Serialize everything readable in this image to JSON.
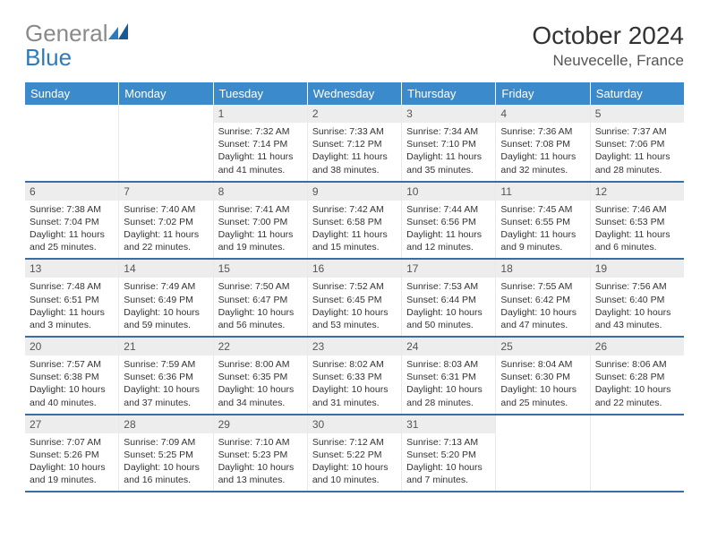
{
  "brand": {
    "word1": "General",
    "word2": "Blue"
  },
  "title": "October 2024",
  "location": "Neuvecelle, France",
  "colors": {
    "header_bg": "#3b8bcc",
    "header_text": "#ffffff",
    "row_divider": "#3b6da3",
    "daynum_bg": "#ededed",
    "daynum_text": "#555555",
    "body_text": "#333333",
    "logo_gray": "#8a8a8a",
    "logo_blue": "#2e7ac0"
  },
  "layout": {
    "columns": 7,
    "rows": 5,
    "cell_min_height": 74
  },
  "dow": [
    "Sunday",
    "Monday",
    "Tuesday",
    "Wednesday",
    "Thursday",
    "Friday",
    "Saturday"
  ],
  "weeks": [
    [
      {
        "empty": true
      },
      {
        "empty": true
      },
      {
        "n": "1",
        "sunrise": "7:32 AM",
        "sunset": "7:14 PM",
        "daylight": "11 hours and 41 minutes."
      },
      {
        "n": "2",
        "sunrise": "7:33 AM",
        "sunset": "7:12 PM",
        "daylight": "11 hours and 38 minutes."
      },
      {
        "n": "3",
        "sunrise": "7:34 AM",
        "sunset": "7:10 PM",
        "daylight": "11 hours and 35 minutes."
      },
      {
        "n": "4",
        "sunrise": "7:36 AM",
        "sunset": "7:08 PM",
        "daylight": "11 hours and 32 minutes."
      },
      {
        "n": "5",
        "sunrise": "7:37 AM",
        "sunset": "7:06 PM",
        "daylight": "11 hours and 28 minutes."
      }
    ],
    [
      {
        "n": "6",
        "sunrise": "7:38 AM",
        "sunset": "7:04 PM",
        "daylight": "11 hours and 25 minutes."
      },
      {
        "n": "7",
        "sunrise": "7:40 AM",
        "sunset": "7:02 PM",
        "daylight": "11 hours and 22 minutes."
      },
      {
        "n": "8",
        "sunrise": "7:41 AM",
        "sunset": "7:00 PM",
        "daylight": "11 hours and 19 minutes."
      },
      {
        "n": "9",
        "sunrise": "7:42 AM",
        "sunset": "6:58 PM",
        "daylight": "11 hours and 15 minutes."
      },
      {
        "n": "10",
        "sunrise": "7:44 AM",
        "sunset": "6:56 PM",
        "daylight": "11 hours and 12 minutes."
      },
      {
        "n": "11",
        "sunrise": "7:45 AM",
        "sunset": "6:55 PM",
        "daylight": "11 hours and 9 minutes."
      },
      {
        "n": "12",
        "sunrise": "7:46 AM",
        "sunset": "6:53 PM",
        "daylight": "11 hours and 6 minutes."
      }
    ],
    [
      {
        "n": "13",
        "sunrise": "7:48 AM",
        "sunset": "6:51 PM",
        "daylight": "11 hours and 3 minutes."
      },
      {
        "n": "14",
        "sunrise": "7:49 AM",
        "sunset": "6:49 PM",
        "daylight": "10 hours and 59 minutes."
      },
      {
        "n": "15",
        "sunrise": "7:50 AM",
        "sunset": "6:47 PM",
        "daylight": "10 hours and 56 minutes."
      },
      {
        "n": "16",
        "sunrise": "7:52 AM",
        "sunset": "6:45 PM",
        "daylight": "10 hours and 53 minutes."
      },
      {
        "n": "17",
        "sunrise": "7:53 AM",
        "sunset": "6:44 PM",
        "daylight": "10 hours and 50 minutes."
      },
      {
        "n": "18",
        "sunrise": "7:55 AM",
        "sunset": "6:42 PM",
        "daylight": "10 hours and 47 minutes."
      },
      {
        "n": "19",
        "sunrise": "7:56 AM",
        "sunset": "6:40 PM",
        "daylight": "10 hours and 43 minutes."
      }
    ],
    [
      {
        "n": "20",
        "sunrise": "7:57 AM",
        "sunset": "6:38 PM",
        "daylight": "10 hours and 40 minutes."
      },
      {
        "n": "21",
        "sunrise": "7:59 AM",
        "sunset": "6:36 PM",
        "daylight": "10 hours and 37 minutes."
      },
      {
        "n": "22",
        "sunrise": "8:00 AM",
        "sunset": "6:35 PM",
        "daylight": "10 hours and 34 minutes."
      },
      {
        "n": "23",
        "sunrise": "8:02 AM",
        "sunset": "6:33 PM",
        "daylight": "10 hours and 31 minutes."
      },
      {
        "n": "24",
        "sunrise": "8:03 AM",
        "sunset": "6:31 PM",
        "daylight": "10 hours and 28 minutes."
      },
      {
        "n": "25",
        "sunrise": "8:04 AM",
        "sunset": "6:30 PM",
        "daylight": "10 hours and 25 minutes."
      },
      {
        "n": "26",
        "sunrise": "8:06 AM",
        "sunset": "6:28 PM",
        "daylight": "10 hours and 22 minutes."
      }
    ],
    [
      {
        "n": "27",
        "sunrise": "7:07 AM",
        "sunset": "5:26 PM",
        "daylight": "10 hours and 19 minutes."
      },
      {
        "n": "28",
        "sunrise": "7:09 AM",
        "sunset": "5:25 PM",
        "daylight": "10 hours and 16 minutes."
      },
      {
        "n": "29",
        "sunrise": "7:10 AM",
        "sunset": "5:23 PM",
        "daylight": "10 hours and 13 minutes."
      },
      {
        "n": "30",
        "sunrise": "7:12 AM",
        "sunset": "5:22 PM",
        "daylight": "10 hours and 10 minutes."
      },
      {
        "n": "31",
        "sunrise": "7:13 AM",
        "sunset": "5:20 PM",
        "daylight": "10 hours and 7 minutes."
      },
      {
        "empty": true
      },
      {
        "empty": true
      }
    ]
  ]
}
